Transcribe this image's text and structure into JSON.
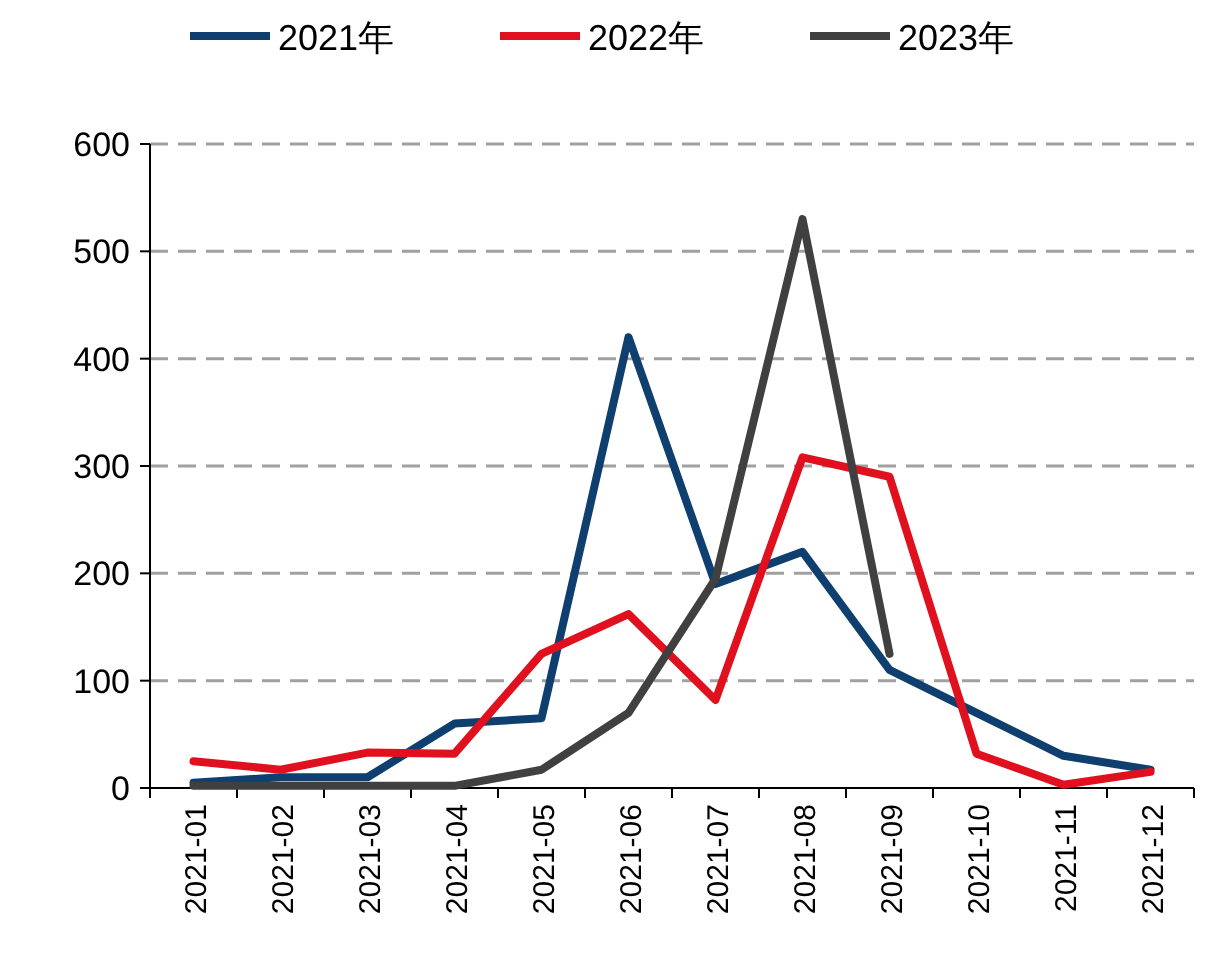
{
  "chart_data": {
    "type": "line",
    "categories": [
      "2021-01",
      "2021-02",
      "2021-03",
      "2021-04",
      "2021-05",
      "2021-06",
      "2021-07",
      "2021-08",
      "2021-09",
      "2021-10",
      "2021-11",
      "2021-12"
    ],
    "series": [
      {
        "name": "2021年",
        "color": "#0f3f6e",
        "values": [
          5,
          10,
          10,
          60,
          65,
          420,
          190,
          220,
          110,
          70,
          30,
          17
        ]
      },
      {
        "name": "2022年",
        "color": "#e0101e",
        "values": [
          25,
          17,
          33,
          32,
          125,
          162,
          82,
          308,
          290,
          32,
          3,
          15
        ]
      },
      {
        "name": "2023年",
        "color": "#404040",
        "values": [
          2,
          2,
          2,
          2,
          17,
          70,
          195,
          530,
          125,
          null,
          null,
          null
        ]
      }
    ],
    "ylim": [
      0,
      600
    ],
    "yticks": [
      0,
      100,
      200,
      300,
      400,
      500,
      600
    ],
    "grid": "y",
    "legend": "top",
    "marker": "none",
    "line_style": "solid"
  }
}
